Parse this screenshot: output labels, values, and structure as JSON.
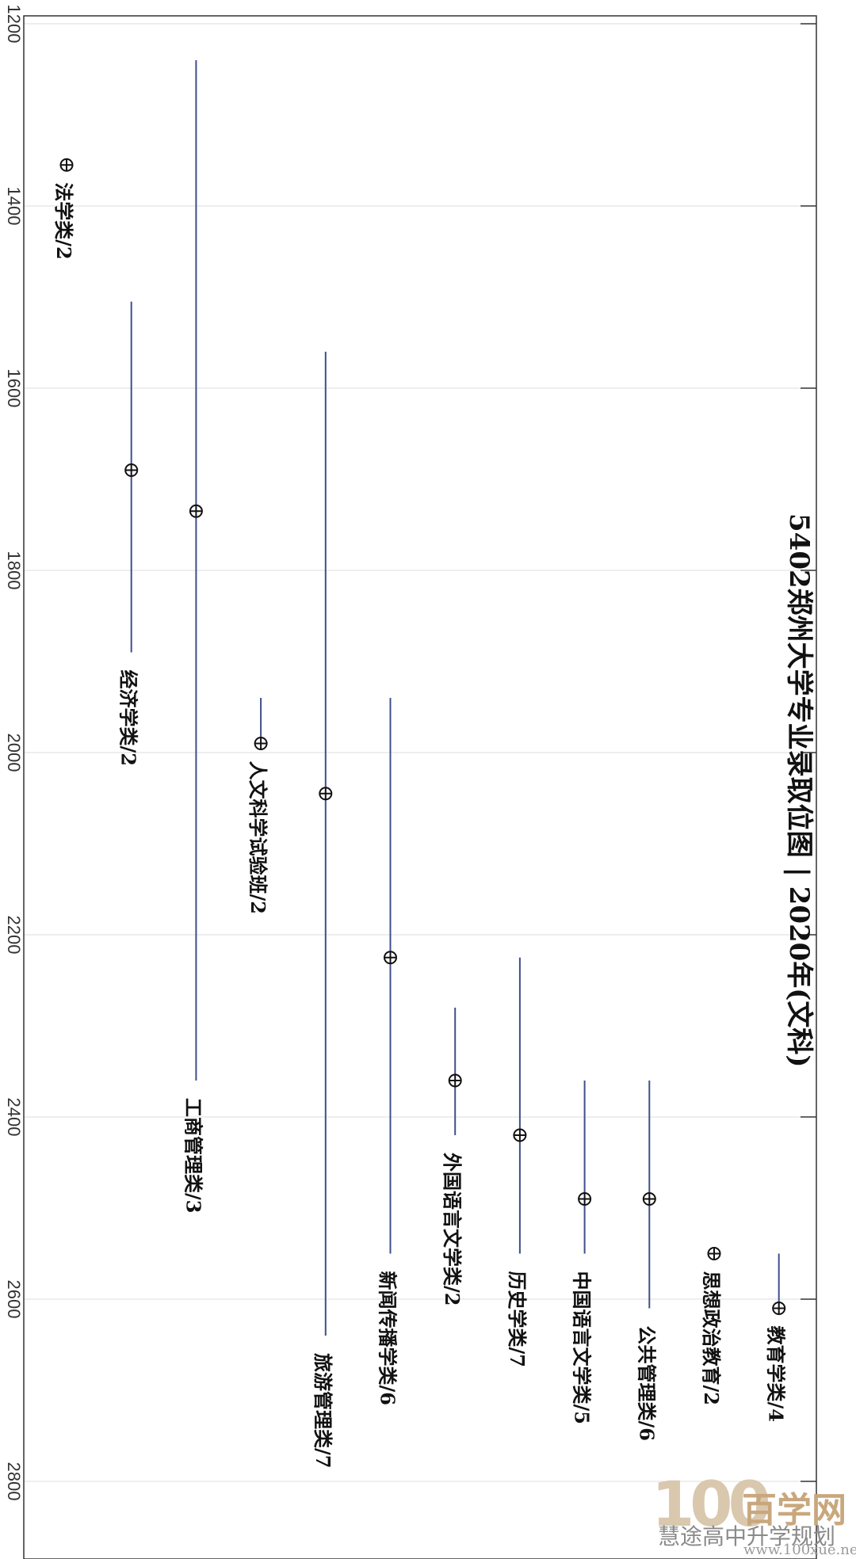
{
  "chart_data": {
    "type": "range-dot",
    "title": "5402郑州大学专业录取位图 | 2020年(文科)",
    "axis": {
      "ticks": [
        1200,
        1400,
        1600,
        1800,
        2000,
        2200,
        2400,
        2600,
        2800
      ],
      "range": [
        1200,
        2800
      ],
      "grid": true
    },
    "series": [
      {
        "label": "法学类/2",
        "low": null,
        "high": null,
        "marker": 1355
      },
      {
        "label": "经济学类/2",
        "low": 1505,
        "high": 1890,
        "marker": 1690
      },
      {
        "label": "工商管理类/3",
        "low": 1240,
        "high": 2360,
        "marker": 1735
      },
      {
        "label": "人文科学试验班/2",
        "low": 1940,
        "high": 1990,
        "marker": 1990
      },
      {
        "label": "旅游管理类/7",
        "low": 1560,
        "high": 2640,
        "marker": 2045
      },
      {
        "label": "新闻传播学类/6",
        "low": 1940,
        "high": 2550,
        "marker": 2225
      },
      {
        "label": "外国语言文学类/2",
        "low": 2280,
        "high": 2420,
        "marker": 2360
      },
      {
        "label": "历史学类/7",
        "low": 2225,
        "high": 2550,
        "marker": 2420
      },
      {
        "label": "中国语言文学类/5",
        "low": 2360,
        "high": 2550,
        "marker": 2490
      },
      {
        "label": "公共管理类/6",
        "low": 2360,
        "high": 2610,
        "marker": 2490
      },
      {
        "label": "思想政治教育/2",
        "low": null,
        "high": null,
        "marker": 2550
      },
      {
        "label": "教育学类/4",
        "low": 2550,
        "high": 2610,
        "marker": 2610
      }
    ]
  },
  "watermark": {
    "logo": "100",
    "brand": "百学网",
    "subtitle": "慧途高中升学规划",
    "url": "www.100xue.net"
  },
  "colors": {
    "line": "#3f4f8c",
    "grid": "#dddddd",
    "frame": "#333333",
    "marker": "#111111"
  }
}
